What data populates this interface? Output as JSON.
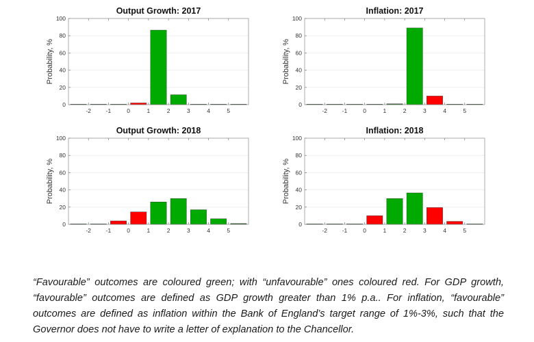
{
  "chart_data": [
    {
      "type": "bar",
      "title": "Output Growth: 2017",
      "ylabel": "Probability, %",
      "xlabel": "",
      "xlim": [
        -3,
        6
      ],
      "ylim": [
        0,
        100
      ],
      "yticks": [
        "0",
        "20",
        "40",
        "60",
        "80",
        "100"
      ],
      "xticks": [
        "-2",
        "-1",
        "0",
        "1",
        "2",
        "3",
        "4",
        "5"
      ],
      "bin_starts": [
        -3,
        -2,
        -1,
        0,
        1,
        2,
        3,
        4,
        5
      ],
      "values": [
        0.2,
        0.2,
        0.3,
        2,
        86.5,
        11.5,
        0.2,
        0.2,
        0.2
      ],
      "outcome": [
        "unfavourable",
        "unfavourable",
        "unfavourable",
        "unfavourable",
        "favourable",
        "favourable",
        "favourable",
        "favourable",
        "favourable"
      ],
      "grid": true
    },
    {
      "type": "bar",
      "title": "Inflation: 2017",
      "ylabel": "Probability, %",
      "xlabel": "",
      "xlim": [
        -3,
        6
      ],
      "ylim": [
        0,
        100
      ],
      "yticks": [
        "0",
        "20",
        "40",
        "60",
        "80",
        "100"
      ],
      "xticks": [
        "-2",
        "-1",
        "0",
        "1",
        "2",
        "3",
        "4",
        "5"
      ],
      "bin_starts": [
        -3,
        -2,
        -1,
        0,
        1,
        2,
        3,
        4,
        5
      ],
      "values": [
        0.2,
        0.2,
        0.2,
        0.2,
        1,
        89,
        10,
        0.5,
        0.2
      ],
      "outcome": [
        "unfavourable",
        "unfavourable",
        "unfavourable",
        "unfavourable",
        "favourable",
        "favourable",
        "unfavourable",
        "unfavourable",
        "unfavourable"
      ],
      "grid": true
    },
    {
      "type": "bar",
      "title": "Output Growth: 2018",
      "ylabel": "Probability, %",
      "xlabel": "",
      "xlim": [
        -3,
        6
      ],
      "ylim": [
        0,
        100
      ],
      "yticks": [
        "0",
        "20",
        "40",
        "60",
        "80",
        "100"
      ],
      "xticks": [
        "-2",
        "-1",
        "0",
        "1",
        "2",
        "3",
        "4",
        "5"
      ],
      "bin_starts": [
        -3,
        -2,
        -1,
        0,
        1,
        2,
        3,
        4,
        5
      ],
      "values": [
        0.5,
        0.3,
        4,
        14.5,
        26,
        30,
        17,
        6.5,
        1
      ],
      "outcome": [
        "unfavourable",
        "unfavourable",
        "unfavourable",
        "unfavourable",
        "favourable",
        "favourable",
        "favourable",
        "favourable",
        "favourable"
      ],
      "grid": true
    },
    {
      "type": "bar",
      "title": "Inflation: 2018",
      "ylabel": "Probability, %",
      "xlabel": "",
      "xlim": [
        -3,
        6
      ],
      "ylim": [
        0,
        100
      ],
      "yticks": [
        "0",
        "20",
        "40",
        "60",
        "80",
        "100"
      ],
      "xticks": [
        "-2",
        "-1",
        "0",
        "1",
        "2",
        "3",
        "4",
        "5"
      ],
      "bin_starts": [
        -3,
        -2,
        -1,
        0,
        1,
        2,
        3,
        4,
        5
      ],
      "values": [
        0.2,
        0.2,
        0.5,
        10,
        30,
        36.5,
        19.5,
        3.5,
        0.2
      ],
      "outcome": [
        "unfavourable",
        "unfavourable",
        "unfavourable",
        "unfavourable",
        "favourable",
        "favourable",
        "unfavourable",
        "unfavourable",
        "unfavourable"
      ],
      "grid": true
    }
  ],
  "colors": {
    "favourable": "#00aa00",
    "unfavourable": "#ff0000",
    "near_zero": "#1f5f1f"
  },
  "caption": "“Favourable” outcomes are coloured green; with “unfavourable” ones coloured red. For GDP growth, “favourable” outcomes are defined as GDP growth greater than 1% p.a.. For inflation, “favourable” outcomes are defined as inflation within the Bank of England’s target range of 1%-3%, such that the Governor does not have to write a letter of explanation to the Chancellor."
}
